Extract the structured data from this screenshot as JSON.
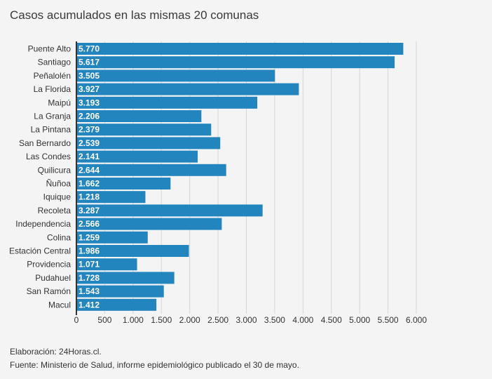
{
  "title": "Casos acumulados en las mismas 20 comunas",
  "footer": {
    "credit": "Elaboración: 24Horas.cl.",
    "source": "Fuente: Ministerio de Salud, informe epidemiológico publicado el 30 de mayo."
  },
  "colors": {
    "bar": "#2385be",
    "grid": "#d6d6d6",
    "axis": "#333333"
  },
  "chart_data": {
    "type": "bar",
    "orientation": "horizontal",
    "categories": [
      "Puente Alto",
      "Santiago",
      "Peñalolén",
      "La Florida",
      "Maipú",
      "La Granja",
      "La Pintana",
      "San Bernardo",
      "Las Condes",
      "Quilicura",
      "Ñuñoa",
      "Iquique",
      "Recoleta",
      "Independencia",
      "Colina",
      "Estación Central",
      "Providencia",
      "Pudahuel",
      "San Ramón",
      "Macul"
    ],
    "values": [
      5770,
      5617,
      3505,
      3927,
      3193,
      2206,
      2379,
      2539,
      2141,
      2644,
      1662,
      1218,
      3287,
      2566,
      1259,
      1986,
      1071,
      1728,
      1543,
      1412
    ],
    "value_labels": [
      "5.770",
      "5.617",
      "3.505",
      "3.927",
      "3.193",
      "2.206",
      "2.379",
      "2.539",
      "2.141",
      "2.644",
      "1.662",
      "1.218",
      "3.287",
      "2.566",
      "1.259",
      "1.986",
      "1.071",
      "1.728",
      "1.543",
      "1.412"
    ],
    "xticks": [
      0,
      500,
      1000,
      1500,
      2000,
      2500,
      3000,
      3500,
      4000,
      4500,
      5000,
      5500,
      6000
    ],
    "xtick_labels": [
      "0",
      "500",
      "1.000",
      "1.500",
      "2.000",
      "2.500",
      "3.000",
      "3.500",
      "4.000",
      "4.500",
      "5.000",
      "5.500",
      "6.000"
    ],
    "xlim": [
      0,
      6200
    ],
    "grid": true
  }
}
